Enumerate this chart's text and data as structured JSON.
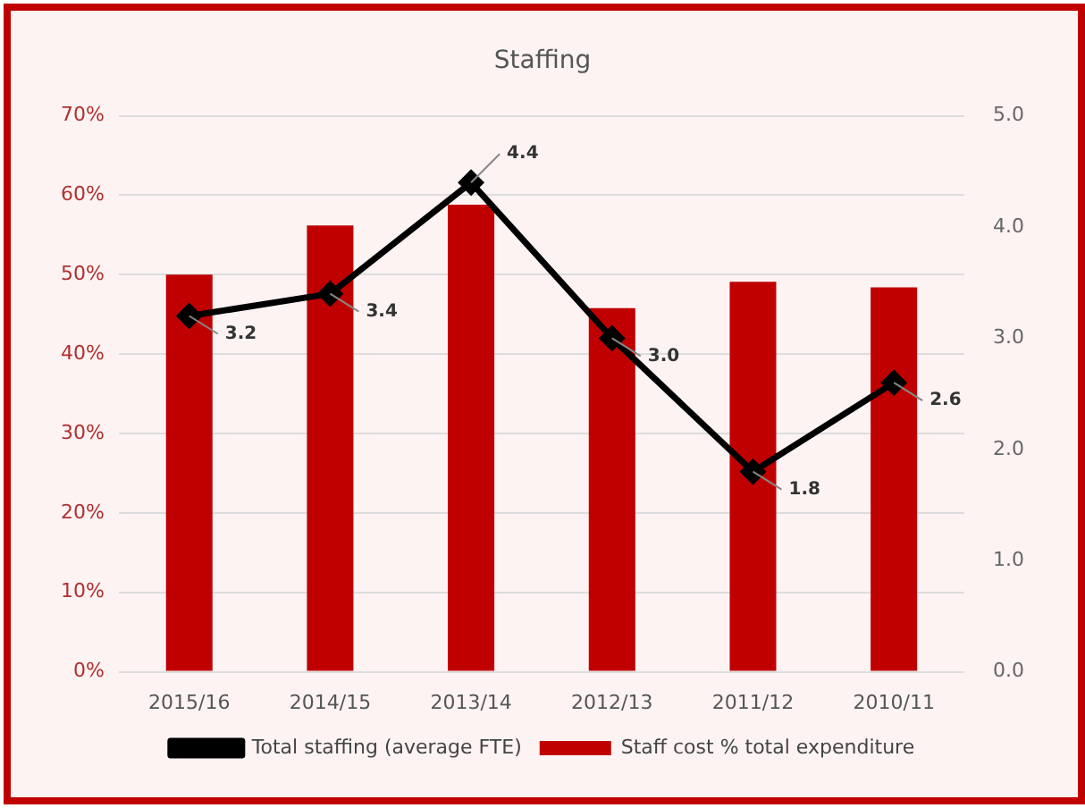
{
  "chart_data": {
    "type": "bar",
    "title": "Staffing",
    "categories": [
      "2015/16",
      "2014/15",
      "2013/14",
      "2012/13",
      "2011/12",
      "2010/11"
    ],
    "series": [
      {
        "name": "Staff cost % total expenditure",
        "color": "#c00000",
        "values": [
          50,
          56.2,
          58.8,
          45.8,
          49.1,
          48.4
        ]
      },
      {
        "name": "Total staffing (average FTE)",
        "type": "line",
        "axis": "y2",
        "color": "#000000",
        "values": [
          3.2,
          3.4,
          4.4,
          3.0,
          1.8,
          2.6
        ],
        "value_labels": [
          "3.2",
          "3.4",
          "4.4",
          "3.0",
          "1.8",
          "2.6"
        ]
      }
    ],
    "ylim": [
      0,
      70
    ],
    "yticks": [
      {
        "value": 0,
        "label": "0%"
      },
      {
        "value": 10,
        "label": "10%"
      },
      {
        "value": 20,
        "label": "20%"
      },
      {
        "value": 30,
        "label": "30%"
      },
      {
        "value": 40,
        "label": "40%"
      },
      {
        "value": 50,
        "label": "50%"
      },
      {
        "value": 60,
        "label": "60%"
      },
      {
        "value": 70,
        "label": "70%"
      }
    ],
    "y2lim": [
      0,
      5
    ],
    "y2ticks": [
      {
        "value": 0,
        "label": "0.0"
      },
      {
        "value": 1,
        "label": "1.0"
      },
      {
        "value": 2,
        "label": "2.0"
      },
      {
        "value": 3,
        "label": "3.0"
      },
      {
        "value": 4,
        "label": "4.0"
      },
      {
        "value": 5,
        "label": "5.0"
      }
    ],
    "grid": "y",
    "legend": "bottom",
    "marker": "diamond",
    "line_style": "solid"
  }
}
